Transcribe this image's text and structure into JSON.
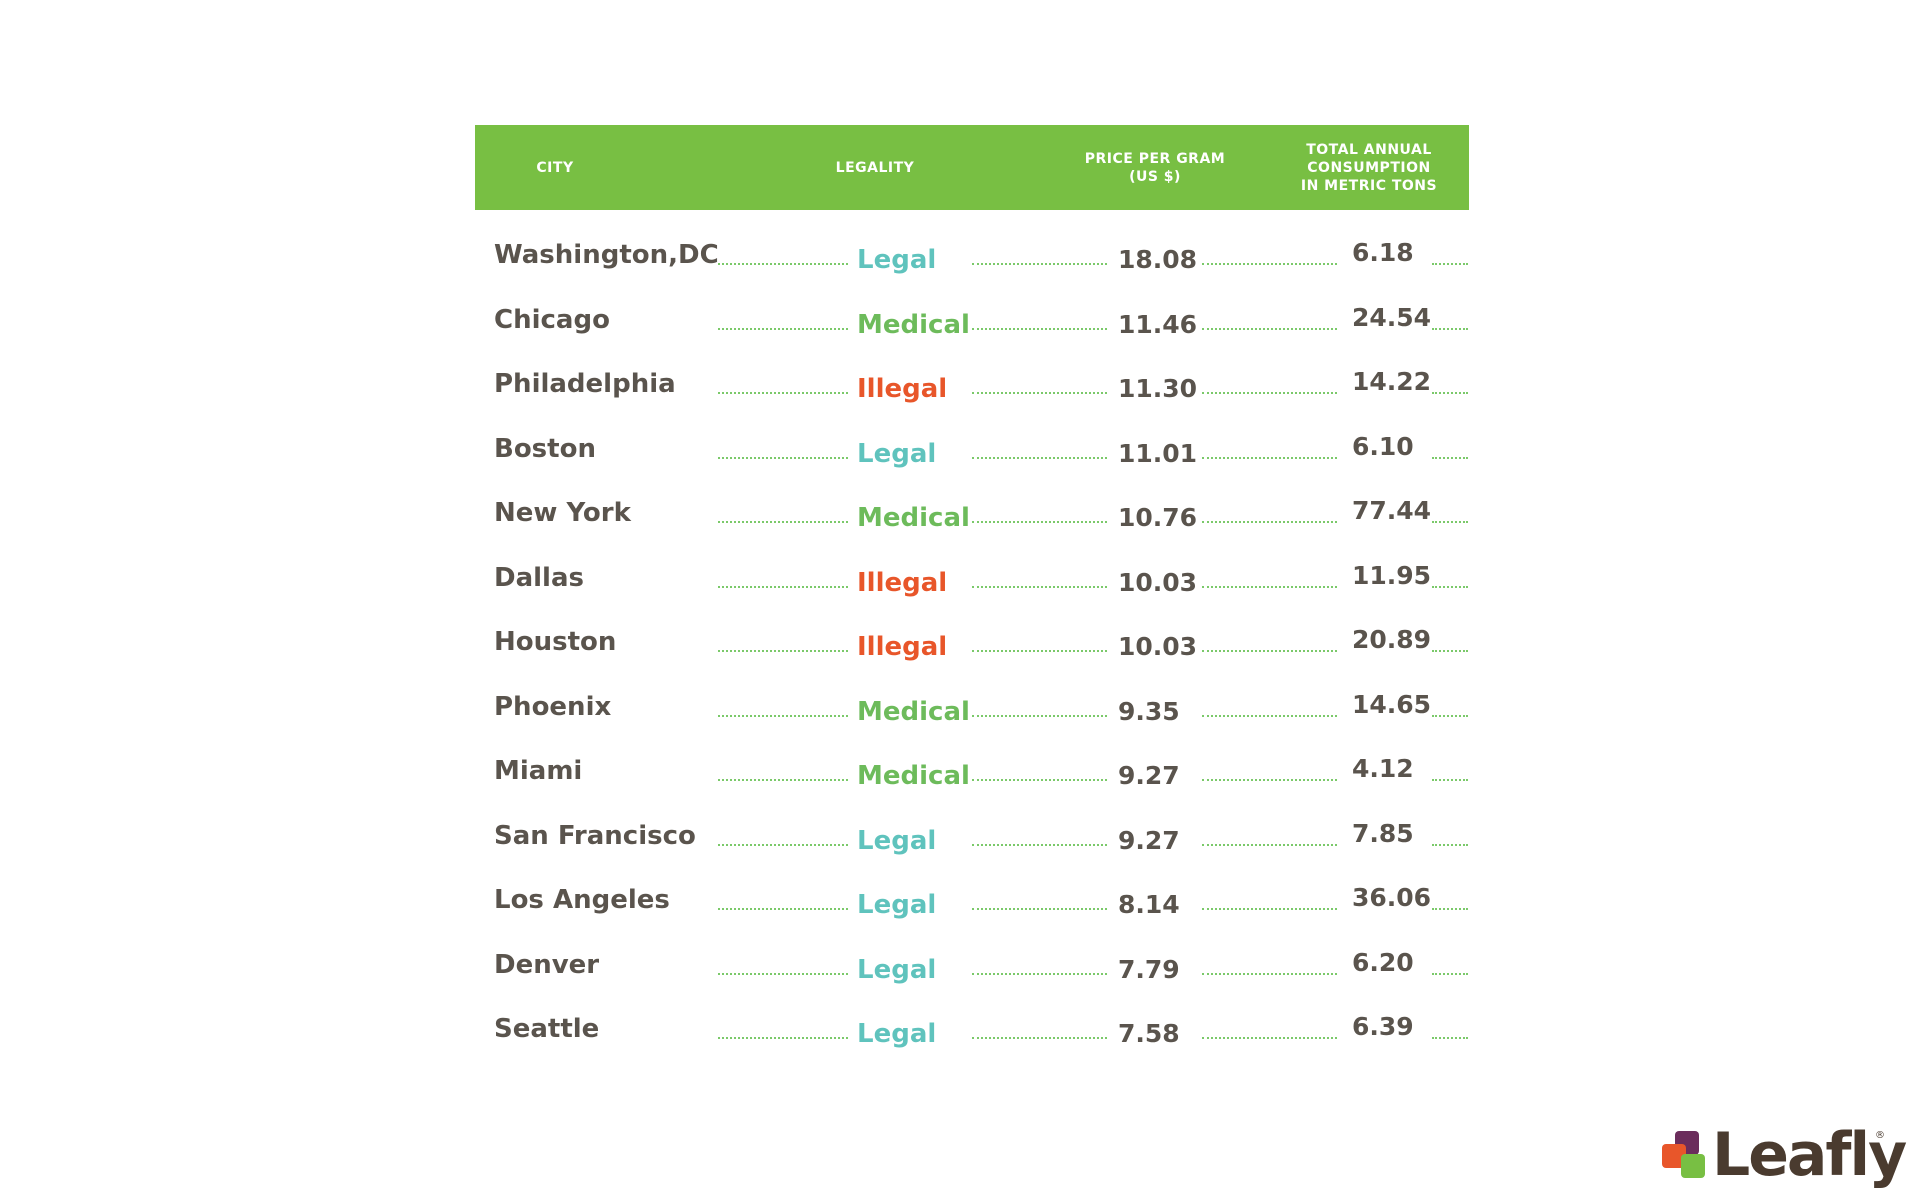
{
  "chart_data": {
    "type": "table",
    "columns": {
      "city": "CITY",
      "legality": "LEGALITY",
      "price": [
        "PRICE PER GRAM",
        "(US $)"
      ],
      "consumption": [
        "TOTAL ANNUAL",
        "CONSUMPTION",
        "IN METRIC TONS"
      ]
    },
    "rows": [
      {
        "city": "Washington,DC",
        "legality": "Legal",
        "price": "18.08",
        "consumption": "6.18"
      },
      {
        "city": "Chicago",
        "legality": "Medical",
        "price": "11.46",
        "consumption": "24.54"
      },
      {
        "city": "Philadelphia",
        "legality": "Illegal",
        "price": "11.30",
        "consumption": "14.22"
      },
      {
        "city": "Boston",
        "legality": "Legal",
        "price": "11.01",
        "consumption": "6.10"
      },
      {
        "city": "New York",
        "legality": "Medical",
        "price": "10.76",
        "consumption": "77.44"
      },
      {
        "city": "Dallas",
        "legality": "Illegal",
        "price": "10.03",
        "consumption": "11.95"
      },
      {
        "city": "Houston",
        "legality": "Illegal",
        "price": "10.03",
        "consumption": "20.89"
      },
      {
        "city": "Phoenix",
        "legality": "Medical",
        "price": "9.35",
        "consumption": "14.65"
      },
      {
        "city": "Miami",
        "legality": "Medical",
        "price": "9.27",
        "consumption": "4.12"
      },
      {
        "city": "San Francisco",
        "legality": "Legal",
        "price": "9.27",
        "consumption": "7.85"
      },
      {
        "city": "Los Angeles",
        "legality": "Legal",
        "price": "8.14",
        "consumption": "36.06"
      },
      {
        "city": "Denver",
        "legality": "Legal",
        "price": "7.79",
        "consumption": "6.20"
      },
      {
        "city": "Seattle",
        "legality": "Legal",
        "price": "7.58",
        "consumption": "6.39"
      }
    ]
  },
  "colors": {
    "header_bg": "#78bf43",
    "text": "#5a544d",
    "Legal": "#5fc3bd",
    "Medical": "#6dbb5b",
    "Illegal": "#e8562a",
    "dots": "#7bc96a"
  },
  "logo": {
    "text": "Leafly",
    "mark": "®",
    "square_colors": [
      "#6b2d5c",
      "#e8562a",
      "#78bf43"
    ]
  }
}
